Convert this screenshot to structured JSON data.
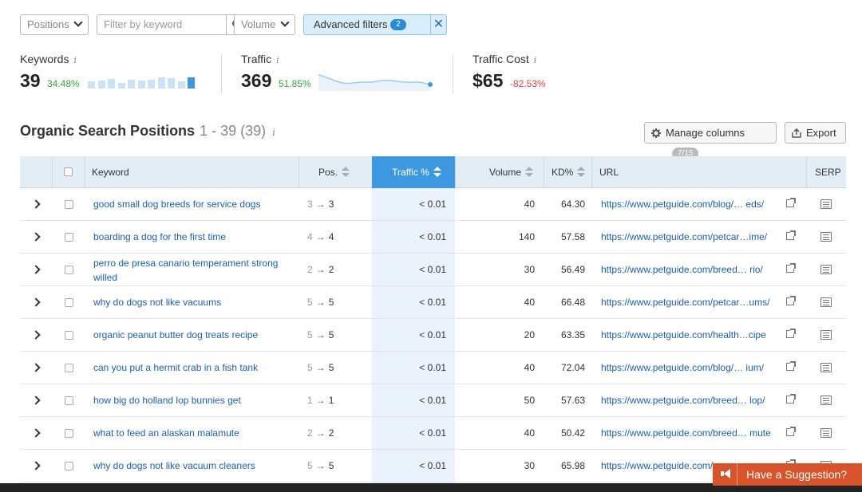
{
  "filters": {
    "positions_label": "Positions",
    "keyword_placeholder": "Filter by keyword",
    "volume_label": "Volume",
    "advanced_label": "Advanced filters",
    "advanced_count": "2",
    "clear_label": "✕"
  },
  "summary": {
    "keywords": {
      "label": "Keywords",
      "value": "39",
      "change": "34.48%",
      "bar_levels": [
        0.55,
        0.6,
        0.75,
        0.45,
        0.7,
        0.65,
        0.7,
        0.85,
        0.8,
        0.55,
        0.9
      ]
    },
    "traffic": {
      "label": "Traffic",
      "value": "369",
      "change": "51.85%"
    },
    "traffic_cost": {
      "label": "Traffic Cost",
      "value": "$65",
      "change": "-82.53%"
    },
    "info_glyph": "i"
  },
  "section": {
    "title": "Organic Search Positions",
    "range": "1 - 39 (39)",
    "manage_columns_label": "Manage columns",
    "manage_columns_count": "7/15",
    "export_label": "Export"
  },
  "table": {
    "headers": {
      "keyword": "Keyword",
      "pos": "Pos.",
      "traffic": "Traffic %",
      "volume": "Volume",
      "kd": "KD%",
      "url": "URL",
      "serp": "SERP"
    },
    "rows": [
      {
        "keyword": "good small dog breeds for service dogs",
        "prev_pos": "3",
        "pos": "3",
        "traffic": "< 0.01",
        "volume": "40",
        "kd": "64.30",
        "url": "https://www.petguide.com/blog/… eds/"
      },
      {
        "keyword": "boarding a dog for the first time",
        "prev_pos": "4",
        "pos": "4",
        "traffic": "< 0.01",
        "volume": "140",
        "kd": "57.58",
        "url": "https://www.petguide.com/petcar…ime/"
      },
      {
        "keyword": "perro de presa canario temperament strong willed",
        "prev_pos": "2",
        "pos": "2",
        "traffic": "< 0.01",
        "volume": "30",
        "kd": "56.49",
        "url": "https://www.petguide.com/breed… rio/"
      },
      {
        "keyword": "why do dogs not like vacuums",
        "prev_pos": "5",
        "pos": "5",
        "traffic": "< 0.01",
        "volume": "40",
        "kd": "66.48",
        "url": "https://www.petguide.com/petcar…ums/"
      },
      {
        "keyword": "organic peanut butter dog treats recipe",
        "prev_pos": "5",
        "pos": "5",
        "traffic": "< 0.01",
        "volume": "20",
        "kd": "63.35",
        "url": "https://www.petguide.com/health…cipe"
      },
      {
        "keyword": "can you put a hermit crab in a fish tank",
        "prev_pos": "5",
        "pos": "5",
        "traffic": "< 0.01",
        "volume": "40",
        "kd": "72.04",
        "url": "https://www.petguide.com/blog/… ium/"
      },
      {
        "keyword": "how big do holland lop bunnies get",
        "prev_pos": "1",
        "pos": "1",
        "traffic": "< 0.01",
        "volume": "50",
        "kd": "57.63",
        "url": "https://www.petguide.com/breed… lop/"
      },
      {
        "keyword": "what to feed an alaskan malamute",
        "prev_pos": "2",
        "pos": "2",
        "traffic": "< 0.01",
        "volume": "40",
        "kd": "50.42",
        "url": "https://www.petguide.com/breed… mute"
      },
      {
        "keyword": "why do dogs not like vacuum cleaners",
        "prev_pos": "5",
        "pos": "5",
        "traffic": "< 0.01",
        "volume": "30",
        "kd": "65.98",
        "url": "https://www.petguide.com/"
      }
    ],
    "arrow_glyph": "→"
  },
  "suggestion": {
    "label": "Have a Suggestion?"
  },
  "icons": [
    "chevron-down-icon",
    "search-icon",
    "close-icon",
    "info-icon",
    "gear-icon",
    "export-icon",
    "sort-icon",
    "expand-icon",
    "external-link-icon",
    "serp-icon",
    "megaphone-icon"
  ],
  "colors": {
    "accent": "#3d98e0",
    "link": "#1a5fb4",
    "positive": "#2ba940",
    "negative": "#e23c3c",
    "suggestion": "#d8532a"
  }
}
